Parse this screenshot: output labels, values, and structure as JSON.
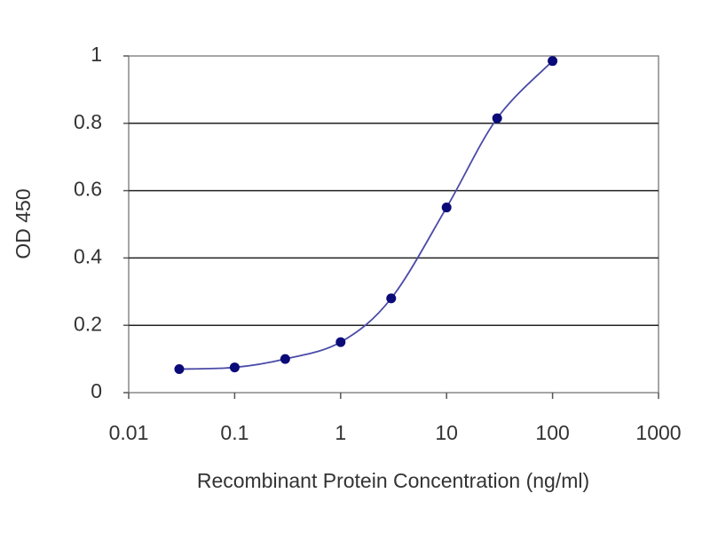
{
  "chart_data": {
    "type": "scatter",
    "xlabel": "Recombinant Protein Concentration (ng/ml)",
    "ylabel": "OD 450",
    "x": [
      0.03,
      0.1,
      0.3,
      1,
      3,
      10,
      30,
      100
    ],
    "values": [
      0.07,
      0.075,
      0.1,
      0.15,
      0.28,
      0.55,
      0.815,
      0.985
    ],
    "xlim": [
      0.01,
      1000
    ],
    "xticks": [
      0.01,
      0.1,
      1,
      10,
      100,
      1000
    ],
    "xscale": "log",
    "ylim": [
      0,
      1
    ],
    "yticks": [
      0,
      0.2,
      0.4,
      0.6,
      0.8,
      1
    ],
    "grid": true,
    "smooth_line": true,
    "line_color": "#4a4aa8",
    "marker_color": "#0a0a78"
  }
}
